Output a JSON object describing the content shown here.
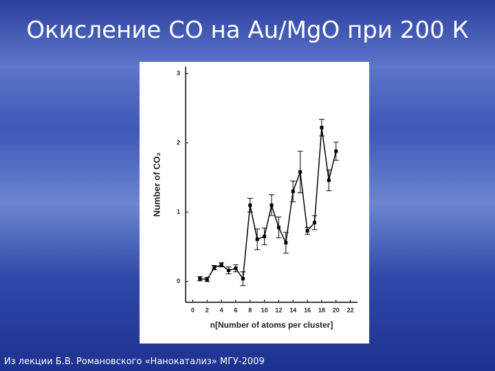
{
  "chart_data": {
    "type": "line",
    "title": "Окисление CO на Au/MgO при 200 К",
    "caption": "Из лекции Б.В. Романовского «Нанокатализ» МГУ-2009",
    "xlabel": "n[Number of atoms per cluster]",
    "ylabel": "Number of CO₂",
    "x": [
      1,
      2,
      3,
      4,
      5,
      6,
      7,
      8,
      9,
      10,
      11,
      12,
      13,
      14,
      15,
      16,
      17,
      18,
      19,
      20
    ],
    "series": [
      {
        "color": "#000000",
        "values": [
          0.04,
          0.03,
          0.2,
          0.24,
          0.16,
          0.19,
          0.04,
          1.1,
          0.61,
          0.65,
          1.1,
          0.78,
          0.56,
          1.3,
          1.58,
          0.73,
          0.85,
          2.22,
          1.46,
          1.88
        ],
        "errors": [
          0.03,
          0.03,
          0.03,
          0.03,
          0.05,
          0.05,
          0.1,
          0.1,
          0.15,
          0.12,
          0.15,
          0.15,
          0.15,
          0.15,
          0.3,
          0.05,
          0.1,
          0.12,
          0.15,
          0.13
        ]
      }
    ],
    "xlim": [
      -1,
      23
    ],
    "xticks": [
      0,
      2,
      4,
      6,
      8,
      10,
      12,
      14,
      16,
      18,
      20,
      22
    ],
    "ylim": [
      -0.3,
      3.1
    ],
    "yticks": [
      0,
      1,
      2,
      3
    ]
  }
}
